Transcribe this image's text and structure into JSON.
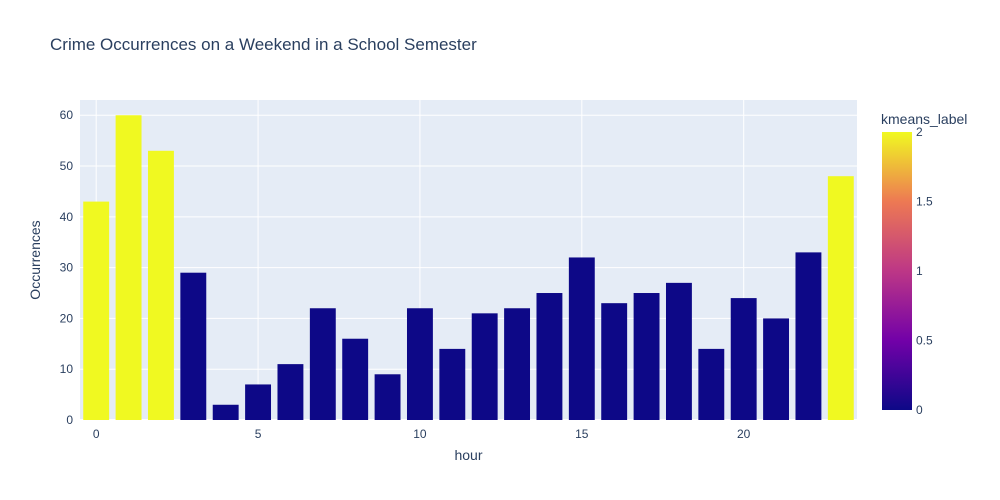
{
  "chart_data": {
    "type": "bar",
    "title": "Crime Occurrences on a Weekend in a School Semester",
    "xlabel": "hour",
    "ylabel": "Occurrences",
    "x": [
      0,
      1,
      2,
      3,
      4,
      5,
      6,
      7,
      8,
      9,
      10,
      11,
      12,
      13,
      14,
      15,
      16,
      17,
      18,
      19,
      20,
      21,
      22,
      23
    ],
    "values": [
      43,
      60,
      53,
      29,
      3,
      7,
      11,
      22,
      16,
      9,
      22,
      14,
      21,
      22,
      25,
      32,
      23,
      25,
      27,
      14,
      24,
      20,
      33,
      48
    ],
    "color_values": [
      2,
      2,
      2,
      0,
      0,
      0,
      0,
      0,
      0,
      0,
      0,
      0,
      0,
      0,
      0,
      0,
      0,
      0,
      0,
      0,
      0,
      0,
      0,
      2
    ],
    "xticks": [
      0,
      5,
      10,
      15,
      20
    ],
    "yticks": [
      0,
      10,
      20,
      30,
      40,
      50,
      60
    ],
    "xlim": [
      -0.5,
      23.5
    ],
    "ylim": [
      0,
      63
    ],
    "grid": true,
    "colorbar": {
      "title": "kmeans_label",
      "ticks": [
        "0",
        "0.5",
        "1",
        "1.5",
        "2"
      ],
      "range": [
        0,
        2
      ],
      "colors": [
        "#0d0887",
        "#7201a8",
        "#bd3786",
        "#ed7953",
        "#f0f921"
      ]
    },
    "plot_bg": "#e5ecf6"
  }
}
